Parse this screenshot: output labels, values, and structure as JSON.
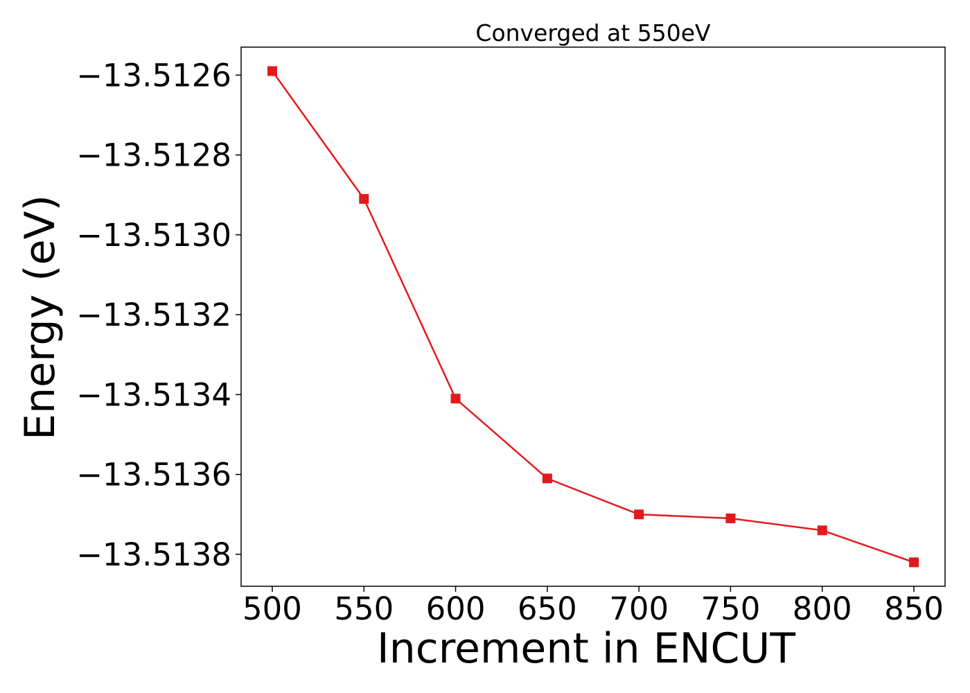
{
  "chart_data": {
    "type": "line",
    "title": "Converged at 550eV",
    "xlabel": "Increment in ENCUT",
    "ylabel": "Energy (eV)",
    "xlim": [
      483,
      867
    ],
    "ylim": [
      -13.51388,
      -13.51253
    ],
    "x_ticks": [
      500,
      550,
      600,
      650,
      700,
      750,
      800,
      850
    ],
    "x_tick_labels": [
      "500",
      "550",
      "600",
      "650",
      "700",
      "750",
      "800",
      "850"
    ],
    "y_ticks": [
      -13.5126,
      -13.5128,
      -13.513,
      -13.5132,
      -13.5134,
      -13.5136,
      -13.5138
    ],
    "y_tick_labels": [
      "−13.5126",
      "−13.5128",
      "−13.5130",
      "−13.5132",
      "−13.5134",
      "−13.5136",
      "−13.5138"
    ],
    "grid": false,
    "series": [
      {
        "color": "#e31a1c",
        "marker": "square",
        "x": [
          500,
          550,
          600,
          650,
          700,
          750,
          800,
          850
        ],
        "y": [
          -13.51259,
          -13.51291,
          -13.51341,
          -13.51361,
          -13.5137,
          -13.51371,
          -13.51374,
          -13.51382
        ]
      }
    ]
  }
}
